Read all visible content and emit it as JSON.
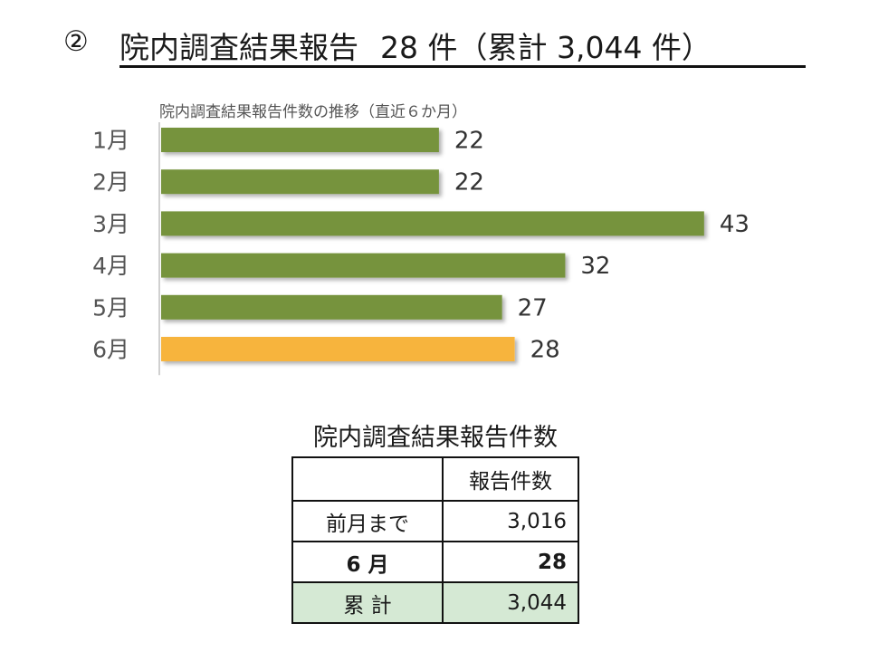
{
  "heading": {
    "number": "②",
    "title": "院内調査結果報告",
    "count": "28 件（累計 3,044 件）"
  },
  "chart_data": {
    "type": "bar",
    "orientation": "horizontal",
    "title": "院内調査結果報告件数の推移（直近６か月）",
    "categories": [
      "1月",
      "2月",
      "3月",
      "4月",
      "5月",
      "6月"
    ],
    "values": [
      22,
      22,
      43,
      32,
      27,
      28
    ],
    "xlim": [
      0,
      45
    ],
    "grid": false,
    "data_labels": true,
    "colors": {
      "default": "#76933c",
      "highlight": "#f7b43c",
      "highlight_index": 5
    }
  },
  "table": {
    "title": "院内調査結果報告件数",
    "header": [
      "",
      "報告件数"
    ],
    "rows": [
      {
        "label": "前月まで",
        "value": "3,016"
      },
      {
        "label": "6 月",
        "value": "28"
      },
      {
        "label": "累 計",
        "value": "3,044"
      }
    ]
  }
}
